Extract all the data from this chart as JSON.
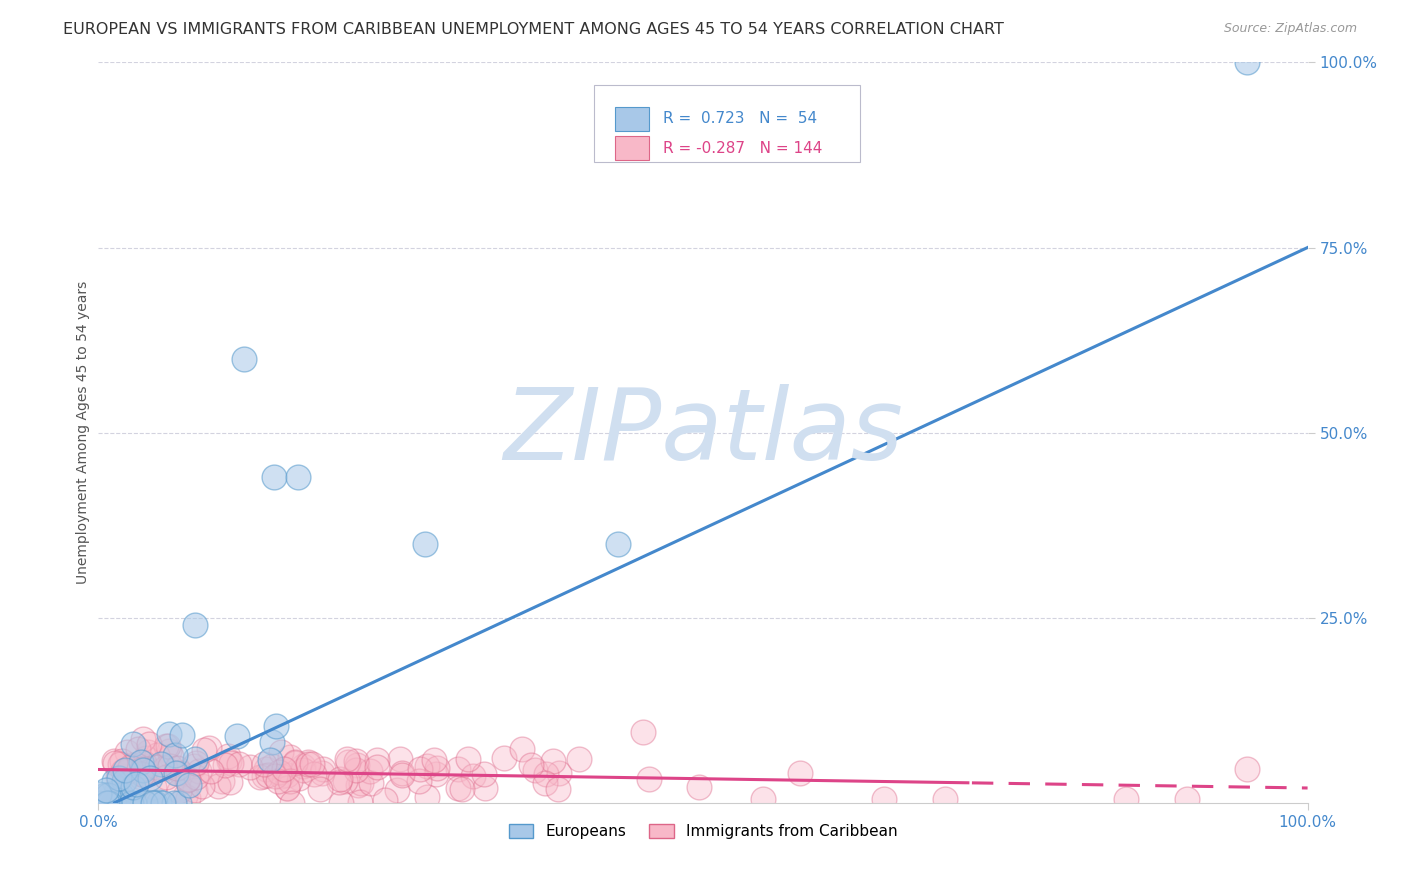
{
  "title": "EUROPEAN VS IMMIGRANTS FROM CARIBBEAN UNEMPLOYMENT AMONG AGES 45 TO 54 YEARS CORRELATION CHART",
  "source": "Source: ZipAtlas.com",
  "ylabel": "Unemployment Among Ages 45 to 54 years",
  "xlim": [
    0.0,
    1.0
  ],
  "ylim": [
    0.0,
    1.0
  ],
  "blue_color": "#a8c8e8",
  "blue_edge": "#5599cc",
  "pink_color": "#f8b8c8",
  "pink_edge": "#dd6688",
  "blue_line_color": "#4488cc",
  "pink_line_color": "#dd4488",
  "watermark_color": "#d0dff0",
  "background_color": "#ffffff",
  "grid_color": "#c8c8d8",
  "title_fontsize": 11.5,
  "axis_fontsize": 10,
  "tick_fontsize": 11,
  "source_fontsize": 9,
  "seed": 12,
  "blue_slope": 0.76,
  "blue_intercept": -0.01,
  "pink_slope": -0.025,
  "pink_intercept": 0.045,
  "blue_N": 54,
  "pink_N": 144,
  "blue_R": 0.723,
  "pink_R": -0.287,
  "blue_specific_x": [
    0.08,
    0.12,
    0.145,
    0.165,
    0.27,
    0.43,
    0.95
  ],
  "blue_specific_y": [
    0.24,
    0.6,
    0.44,
    0.44,
    0.35,
    0.35,
    1.0
  ],
  "pink_specific_x": [
    0.45,
    0.55,
    0.58,
    0.65,
    0.7,
    0.85,
    0.9,
    0.95
  ],
  "pink_specific_y": [
    0.095,
    0.005,
    0.04,
    0.005,
    0.005,
    0.005,
    0.005,
    0.045
  ]
}
